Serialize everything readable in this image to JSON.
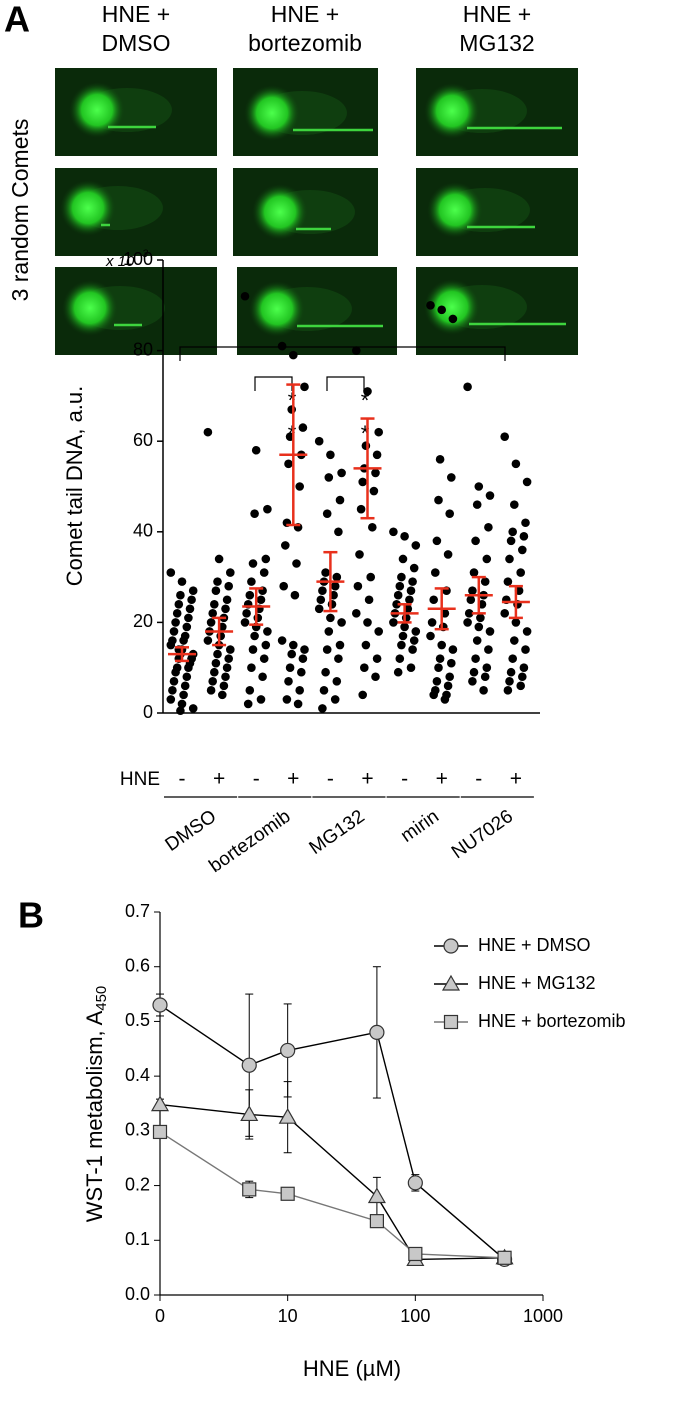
{
  "panel_labels": [
    "A",
    "B"
  ],
  "image_columns": [
    [
      "HNE +",
      "DMSO"
    ],
    [
      "HNE +",
      "bortezomib"
    ],
    [
      "HNE +",
      "MG132"
    ]
  ],
  "image_row_label": "3 random Comets",
  "chart_data": [
    {
      "type": "dot",
      "ylabel": "Comet tail DNA, a.u.",
      "y_multiplier": "x 10",
      "y_multiplier_exp": "3",
      "ylim": [
        0,
        100
      ],
      "yticks": [
        0,
        20,
        40,
        60,
        80,
        100
      ],
      "row_label": "HNE",
      "categories": [
        "-",
        "+",
        "-",
        "+",
        "-",
        "+",
        "-",
        "+",
        "-",
        "+"
      ],
      "groups": [
        "DMSO",
        "bortezomib",
        "MG132",
        "mirin",
        "NU7026"
      ],
      "significance": [
        "*",
        "*",
        "*",
        "*"
      ],
      "point_color": "#000000",
      "mean_color": "#e8301c",
      "points": [
        [
          31,
          29,
          27,
          26,
          25,
          24,
          23,
          22,
          21,
          20,
          19,
          18,
          17,
          16,
          16,
          15,
          14,
          13,
          13,
          12,
          12,
          11,
          10,
          10,
          9,
          8,
          7,
          6,
          5,
          4,
          3,
          2,
          1,
          0.5,
          12,
          14
        ],
        [
          62,
          34,
          31,
          29,
          28,
          27,
          25,
          24,
          23,
          22,
          21,
          20,
          19,
          18,
          17,
          16,
          15,
          14,
          13,
          12,
          11,
          10,
          9,
          8,
          7,
          6,
          5,
          4
        ],
        [
          92,
          58,
          45,
          44,
          34,
          33,
          31,
          29,
          27,
          26,
          25,
          24,
          23,
          22,
          21,
          20,
          19,
          18,
          17,
          15,
          14,
          12,
          10,
          8,
          5,
          3,
          2
        ],
        [
          81,
          79,
          72,
          67,
          63,
          61,
          57,
          55,
          50,
          42,
          41,
          37,
          33,
          28,
          26,
          16,
          15,
          14,
          13,
          12,
          10,
          9,
          7,
          5,
          3,
          2
        ],
        [
          60,
          57,
          53,
          52,
          47,
          44,
          40,
          31,
          30,
          29,
          28,
          27,
          26,
          25,
          24,
          23,
          21,
          20,
          18,
          15,
          14,
          12,
          9,
          7,
          5,
          3,
          1
        ],
        [
          80,
          71,
          62,
          59,
          57,
          54,
          53,
          51,
          49,
          45,
          41,
          35,
          30,
          28,
          25,
          22,
          20,
          18,
          15,
          12,
          10,
          8,
          4
        ],
        [
          40,
          39,
          37,
          34,
          32,
          30,
          29,
          28,
          27,
          26,
          25,
          24,
          23,
          22,
          21,
          20,
          19,
          18,
          17,
          16,
          15,
          14,
          12,
          10,
          9
        ],
        [
          90,
          89,
          87,
          56,
          52,
          47,
          44,
          38,
          35,
          31,
          27,
          25,
          22,
          20,
          19,
          17,
          15,
          14,
          12,
          11,
          10,
          8,
          7,
          6,
          5,
          4,
          4,
          3
        ],
        [
          72,
          50,
          48,
          46,
          41,
          38,
          34,
          31,
          29,
          27,
          26,
          25,
          24,
          22,
          21,
          20,
          19,
          18,
          16,
          14,
          12,
          10,
          9,
          8,
          7,
          5
        ],
        [
          61,
          55,
          51,
          46,
          42,
          40,
          39,
          38,
          36,
          34,
          31,
          29,
          27,
          25,
          24,
          22,
          20,
          18,
          16,
          14,
          12,
          10,
          9,
          8,
          7,
          6,
          5
        ]
      ],
      "means": [
        13,
        18,
        23.5,
        57,
        29,
        54,
        22,
        23,
        26,
        24.5
      ],
      "errors": [
        1.5,
        3,
        4,
        15.5,
        6.5,
        11,
        2,
        4.5,
        4,
        3.5
      ]
    },
    {
      "type": "line",
      "xlabel": "HNE (µM)",
      "ylabel": "WST-1 metabolism, A",
      "ylabel_sub": "450",
      "log_x": true,
      "x": [
        0,
        5,
        10,
        50,
        100,
        500
      ],
      "xlim": [
        0,
        1000
      ],
      "xticks": [
        0,
        10,
        100,
        1000
      ],
      "ylim": [
        0,
        0.7
      ],
      "yticks": [
        {
          "value": 0,
          "label": "0.0"
        },
        0.1,
        0.2,
        0.3,
        0.4,
        0.5,
        0.6,
        0.7
      ],
      "legend": "top-right",
      "series": [
        {
          "name": "HNE + DMSO",
          "marker": "circle",
          "color": "#000000",
          "fill": "#c8c8c8",
          "values": [
            0.53,
            0.42,
            0.447,
            0.48,
            0.205,
            0.065
          ],
          "errors": [
            0.02,
            0.13,
            0.085,
            0.12,
            0.015,
            0.005
          ]
        },
        {
          "name": "HNE + MG132",
          "marker": "triangle",
          "color": "#000000",
          "fill": "#c8c8c8",
          "values": [
            0.348,
            0.33,
            0.325,
            0.18,
            0.065,
            0.068
          ],
          "errors": [
            0.01,
            0.045,
            0.065,
            0.035,
            0.008,
            0.003
          ]
        },
        {
          "name": "HNE + bortezomib",
          "marker": "square",
          "color": "#777777",
          "fill": "#c8c8c8",
          "values": [
            0.298,
            0.193,
            0.185,
            0.135,
            0.075,
            0.068
          ],
          "errors": [
            0.005,
            0.015,
            0.005,
            0.005,
            0.01,
            0.003
          ]
        }
      ]
    }
  ]
}
